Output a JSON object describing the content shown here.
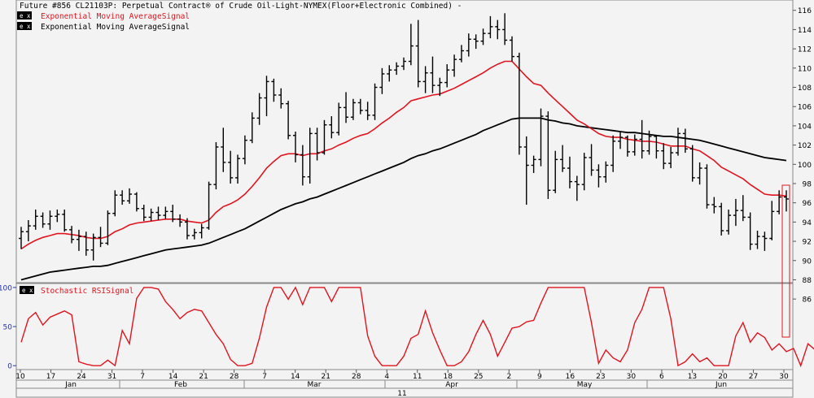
{
  "header": {
    "title": "Future #856 CL21103P: Perpetual Contract® of Crude Oil-Light-NYMEX(Floor+Electronic Combined) -",
    "legend": [
      {
        "label": "Exponential Moving AverageSignal",
        "color": "#e0141e"
      },
      {
        "label": "Exponential Moving AverageSignal",
        "color": "#000000"
      }
    ]
  },
  "lower_panel": {
    "legend_label": "Stochastic RSISignal",
    "legend_color": "#e0141e"
  },
  "x_axis": {
    "day_ticks": [
      "10",
      "17",
      "24",
      "31",
      "7",
      "14",
      "21",
      "28",
      "7",
      "14",
      "21",
      "28",
      "4",
      "11",
      "18",
      "25",
      "2",
      "9",
      "16",
      "23",
      "30",
      "6",
      "13",
      "20",
      "27",
      "30"
    ],
    "month_labels": [
      "Jan",
      "Feb",
      "Mar",
      "Apr",
      "May",
      "Jun"
    ],
    "year_label": "11"
  },
  "colors": {
    "background": "#f3f3f3",
    "price_bars": "#000000",
    "fast_ema": "#e0141e",
    "slow_ema": "#000000",
    "stoch_rsi": "#e0141e",
    "lower_axis": "#2233aa",
    "highlight": "#e0141e"
  },
  "chart_data": [
    {
      "type": "ohlc",
      "title": "Future #856 CL21103P: Perpetual Contract® of Crude Oil-Light-NYMEX(Floor+Electronic Combined) -",
      "y_ticks": [
        86,
        88,
        90,
        92,
        94,
        96,
        98,
        100,
        102,
        104,
        106,
        108,
        110,
        112,
        114,
        116
      ],
      "ylim": [
        85,
        116.4
      ],
      "ohlc": [
        [
          92.3,
          93.5,
          91.2,
          93.0
        ],
        [
          93.0,
          94.2,
          92.0,
          93.6
        ],
        [
          93.6,
          95.3,
          93.2,
          94.6
        ],
        [
          94.6,
          95.0,
          93.4,
          93.8
        ],
        [
          93.8,
          95.2,
          93.2,
          94.6
        ],
        [
          94.6,
          95.3,
          94.0,
          94.8
        ],
        [
          94.8,
          95.3,
          93.0,
          93.2
        ],
        [
          93.2,
          93.6,
          91.8,
          92.2
        ],
        [
          92.2,
          93.2,
          91.0,
          92.5
        ],
        [
          92.5,
          93.0,
          90.5,
          91.1
        ],
        [
          91.1,
          92.8,
          90.0,
          92.4
        ],
        [
          92.4,
          93.5,
          91.4,
          91.8
        ],
        [
          91.8,
          95.2,
          91.6,
          94.9
        ],
        [
          94.9,
          97.3,
          94.6,
          96.8
        ],
        [
          96.8,
          97.3,
          95.8,
          96.2
        ],
        [
          96.2,
          97.5,
          95.9,
          96.9
        ],
        [
          96.9,
          97.1,
          95.1,
          95.4
        ],
        [
          95.4,
          95.8,
          94.1,
          94.5
        ],
        [
          94.5,
          95.4,
          94.1,
          95.0
        ],
        [
          95.0,
          95.6,
          94.2,
          94.7
        ],
        [
          94.7,
          95.6,
          94.3,
          95.1
        ],
        [
          95.1,
          95.8,
          94.0,
          94.3
        ],
        [
          94.3,
          94.8,
          93.5,
          94.0
        ],
        [
          94.0,
          94.4,
          92.2,
          92.6
        ],
        [
          92.6,
          93.3,
          92.2,
          92.9
        ],
        [
          92.9,
          93.8,
          92.3,
          93.4
        ],
        [
          93.4,
          98.2,
          93.2,
          97.9
        ],
        [
          97.9,
          102.3,
          97.4,
          101.8
        ],
        [
          101.8,
          103.8,
          99.2,
          100.2
        ],
        [
          100.2,
          101.4,
          98.0,
          98.6
        ],
        [
          98.6,
          101.0,
          98.0,
          100.6
        ],
        [
          100.6,
          103.0,
          100.0,
          102.5
        ],
        [
          102.5,
          105.4,
          102.2,
          104.8
        ],
        [
          104.8,
          107.4,
          104.1,
          106.9
        ],
        [
          106.9,
          109.2,
          105.0,
          108.6
        ],
        [
          108.6,
          108.9,
          106.5,
          107.2
        ],
        [
          107.2,
          107.9,
          105.8,
          106.3
        ],
        [
          106.3,
          106.6,
          102.6,
          103.0
        ],
        [
          103.0,
          103.4,
          100.2,
          101.0
        ],
        [
          101.0,
          102.0,
          97.8,
          98.7
        ],
        [
          98.7,
          103.8,
          98.0,
          103.2
        ],
        [
          103.2,
          103.8,
          100.4,
          101.2
        ],
        [
          101.2,
          104.6,
          101.0,
          104.1
        ],
        [
          104.1,
          105.0,
          102.7,
          103.3
        ],
        [
          103.3,
          106.4,
          103.0,
          105.9
        ],
        [
          105.9,
          107.5,
          104.3,
          104.9
        ],
        [
          104.9,
          106.8,
          104.6,
          106.4
        ],
        [
          106.4,
          106.8,
          105.2,
          105.6
        ],
        [
          105.6,
          106.5,
          104.6,
          105.1
        ],
        [
          105.1,
          108.4,
          104.6,
          108.0
        ],
        [
          108.0,
          110.0,
          107.3,
          109.4
        ],
        [
          109.4,
          110.3,
          108.6,
          109.8
        ],
        [
          109.8,
          110.6,
          109.3,
          110.2
        ],
        [
          110.2,
          111.1,
          109.8,
          110.7
        ],
        [
          110.7,
          114.6,
          110.3,
          112.3
        ],
        [
          112.3,
          115.0,
          108.0,
          108.6
        ],
        [
          108.6,
          110.2,
          107.4,
          109.5
        ],
        [
          109.5,
          111.2,
          107.4,
          108.2
        ],
        [
          108.2,
          109.0,
          107.1,
          108.5
        ],
        [
          108.5,
          110.4,
          108.0,
          109.8
        ],
        [
          109.8,
          111.4,
          109.1,
          110.9
        ],
        [
          110.9,
          112.4,
          110.6,
          111.8
        ],
        [
          111.8,
          113.6,
          111.2,
          113.0
        ],
        [
          113.0,
          113.5,
          112.0,
          112.8
        ],
        [
          112.8,
          114.1,
          112.4,
          113.6
        ],
        [
          113.6,
          115.4,
          113.1,
          114.3
        ],
        [
          114.3,
          115.0,
          113.0,
          114.0
        ],
        [
          114.0,
          115.7,
          112.4,
          112.9
        ],
        [
          112.9,
          113.3,
          110.7,
          111.2
        ],
        [
          111.2,
          111.6,
          101.0,
          101.8
        ],
        [
          101.8,
          102.9,
          95.8,
          99.9
        ],
        [
          99.9,
          100.9,
          99.1,
          100.5
        ],
        [
          100.5,
          105.8,
          99.8,
          105.0
        ],
        [
          105.0,
          105.5,
          96.4,
          97.3
        ],
        [
          97.3,
          101.4,
          97.0,
          100.5
        ],
        [
          100.5,
          102.0,
          99.2,
          99.6
        ],
        [
          99.6,
          100.8,
          97.5,
          98.2
        ],
        [
          98.2,
          98.8,
          96.2,
          97.9
        ],
        [
          97.9,
          101.2,
          97.3,
          100.7
        ],
        [
          100.7,
          102.1,
          98.8,
          99.4
        ],
        [
          99.4,
          100.0,
          97.6,
          98.7
        ],
        [
          98.7,
          100.3,
          98.1,
          99.9
        ],
        [
          99.9,
          103.0,
          99.2,
          102.4
        ],
        [
          102.4,
          103.4,
          101.6,
          102.8
        ],
        [
          102.8,
          103.0,
          100.8,
          101.3
        ],
        [
          101.3,
          103.1,
          100.9,
          102.6
        ],
        [
          102.6,
          104.6,
          100.6,
          101.4
        ],
        [
          101.4,
          103.5,
          101.0,
          102.9
        ],
        [
          102.9,
          103.0,
          100.6,
          101.4
        ],
        [
          101.4,
          102.2,
          99.5,
          100.1
        ],
        [
          100.1,
          101.8,
          99.6,
          101.2
        ],
        [
          101.2,
          103.8,
          100.9,
          103.2
        ],
        [
          103.2,
          103.7,
          101.2,
          101.6
        ],
        [
          101.6,
          102.0,
          98.2,
          98.6
        ],
        [
          98.6,
          100.2,
          97.9,
          99.6
        ],
        [
          99.6,
          100.0,
          95.4,
          95.8
        ],
        [
          95.8,
          96.6,
          94.9,
          95.6
        ],
        [
          95.6,
          96.0,
          92.6,
          93.1
        ],
        [
          93.1,
          95.3,
          92.7,
          94.7
        ],
        [
          94.7,
          96.4,
          93.6,
          95.2
        ],
        [
          95.2,
          96.8,
          94.1,
          94.5
        ],
        [
          94.5,
          95.0,
          91.1,
          91.7
        ],
        [
          91.7,
          93.1,
          91.2,
          92.5
        ],
        [
          92.5,
          93.0,
          91.0,
          92.3
        ],
        [
          92.3,
          96.2,
          92.1,
          95.1
        ],
        [
          95.1,
          97.3,
          94.8,
          96.6
        ],
        [
          96.6,
          97.3,
          95.1,
          96.4
        ]
      ],
      "series": [
        {
          "name": "Exponential Moving AverageSignal",
          "color": "#e0141e",
          "values": [
            91.2,
            91.7,
            92.1,
            92.4,
            92.6,
            92.8,
            92.8,
            92.7,
            92.6,
            92.4,
            92.3,
            92.3,
            92.5,
            93.0,
            93.3,
            93.7,
            93.9,
            94.0,
            94.1,
            94.2,
            94.3,
            94.3,
            94.3,
            94.1,
            94.0,
            93.9,
            94.2,
            95.0,
            95.6,
            95.9,
            96.3,
            96.9,
            97.7,
            98.6,
            99.6,
            100.3,
            100.9,
            101.1,
            101.1,
            100.9,
            101.1,
            101.1,
            101.4,
            101.6,
            102.0,
            102.3,
            102.7,
            103.0,
            103.2,
            103.7,
            104.3,
            104.8,
            105.4,
            105.9,
            106.6,
            106.8,
            107.0,
            107.2,
            107.3,
            107.6,
            107.9,
            108.3,
            108.7,
            109.1,
            109.5,
            110.0,
            110.4,
            110.7,
            110.7,
            109.9,
            109.1,
            108.4,
            108.2,
            107.4,
            106.7,
            106.0,
            105.3,
            104.6,
            104.2,
            103.7,
            103.2,
            102.9,
            102.8,
            102.8,
            102.6,
            102.5,
            102.4,
            102.4,
            102.3,
            102.1,
            101.9,
            101.9,
            101.9,
            101.6,
            101.4,
            100.9,
            100.4,
            99.7,
            99.3,
            98.9,
            98.5,
            97.9,
            97.4,
            96.9,
            96.8,
            96.8,
            96.7
          ]
        },
        {
          "name": "Exponential Moving AverageSignal",
          "color": "#000000",
          "values": [
            88.0,
            88.2,
            88.4,
            88.6,
            88.8,
            88.9,
            89.0,
            89.1,
            89.2,
            89.3,
            89.4,
            89.4,
            89.5,
            89.7,
            89.9,
            90.1,
            90.3,
            90.5,
            90.7,
            90.9,
            91.1,
            91.2,
            91.3,
            91.4,
            91.5,
            91.6,
            91.8,
            92.1,
            92.4,
            92.7,
            93.0,
            93.3,
            93.7,
            94.1,
            94.5,
            94.9,
            95.3,
            95.6,
            95.9,
            96.1,
            96.4,
            96.6,
            96.9,
            97.2,
            97.5,
            97.8,
            98.1,
            98.4,
            98.7,
            99.0,
            99.3,
            99.6,
            99.9,
            100.2,
            100.6,
            100.9,
            101.1,
            101.4,
            101.6,
            101.9,
            102.2,
            102.5,
            102.8,
            103.1,
            103.5,
            103.8,
            104.1,
            104.4,
            104.7,
            104.8,
            104.8,
            104.8,
            104.8,
            104.6,
            104.5,
            104.3,
            104.2,
            104.0,
            103.9,
            103.8,
            103.7,
            103.6,
            103.5,
            103.4,
            103.3,
            103.3,
            103.2,
            103.1,
            103.0,
            102.9,
            102.9,
            102.8,
            102.7,
            102.6,
            102.5,
            102.3,
            102.1,
            101.9,
            101.7,
            101.5,
            101.3,
            101.1,
            100.9,
            100.7,
            100.6,
            100.5,
            100.4
          ]
        }
      ]
    },
    {
      "type": "line",
      "title": "Stochastic RSISignal",
      "y_ticks": [
        0,
        50,
        100
      ],
      "ylim": [
        -5,
        102
      ],
      "series": [
        {
          "name": "Stochastic RSISignal",
          "color": "#e0141e",
          "values": [
            30,
            60,
            68,
            52,
            62,
            66,
            70,
            65,
            5,
            2,
            0,
            0,
            7,
            0,
            45,
            28,
            86,
            100,
            100,
            98,
            82,
            72,
            60,
            68,
            72,
            70,
            55,
            40,
            28,
            8,
            0,
            0,
            3,
            35,
            75,
            100,
            100,
            85,
            100,
            78,
            100,
            100,
            100,
            82,
            100,
            100,
            100,
            100,
            38,
            12,
            0,
            0,
            0,
            12,
            35,
            40,
            70,
            42,
            20,
            0,
            0,
            5,
            18,
            40,
            58,
            40,
            12,
            30,
            48,
            50,
            56,
            58,
            80,
            100,
            100,
            100,
            100,
            100,
            100,
            55,
            3,
            20,
            10,
            5,
            20,
            55,
            72,
            100,
            100,
            100,
            60,
            0,
            5,
            15,
            5,
            10,
            0,
            0,
            0,
            38,
            55,
            30,
            42,
            36,
            20,
            28,
            18,
            22,
            0,
            28,
            20,
            100,
            100
          ]
        }
      ]
    }
  ]
}
